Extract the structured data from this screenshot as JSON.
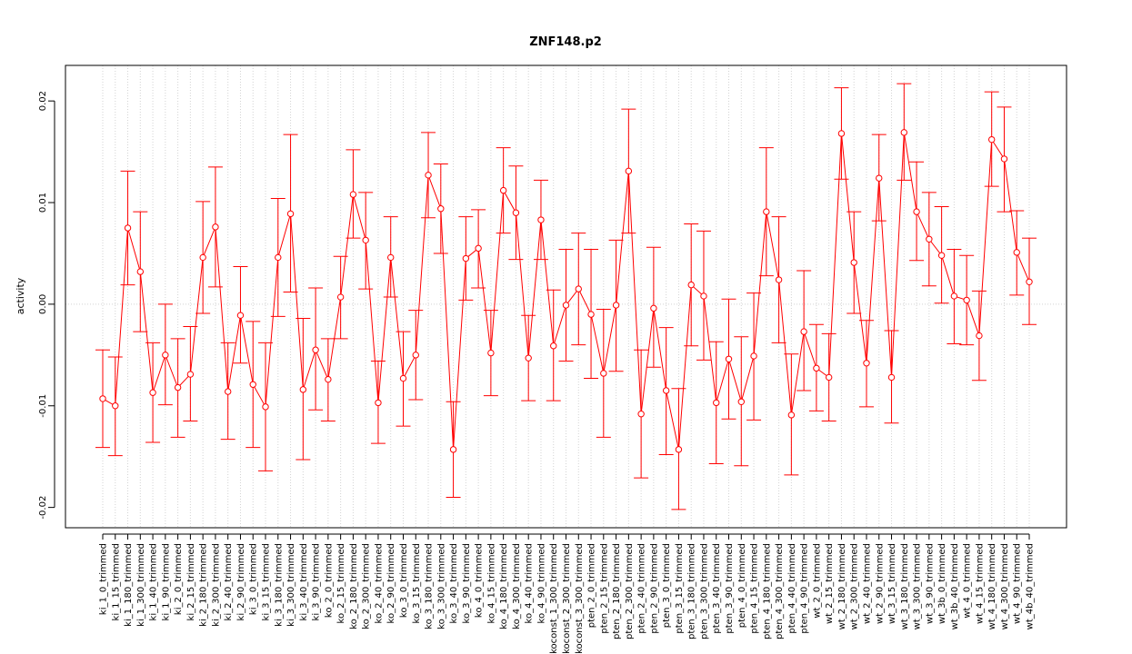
{
  "chart_data": {
    "type": "line",
    "title": "ZNF148.p2",
    "xlabel": "",
    "ylabel": "activity",
    "ylim": [
      -0.022,
      0.0235
    ],
    "y_ticks": [
      -0.02,
      -0.01,
      0.0,
      0.01,
      0.02
    ],
    "y_tick_labels": [
      "-0.02",
      "-0.01",
      "0.00",
      "0.01",
      "0.02"
    ],
    "grid": true,
    "colors": {
      "series": "#ff0000",
      "grid": "#d3d3d3",
      "axis": "#000000"
    },
    "categories": [
      "ki_1_0_trimmed",
      "ki_1_15_trimmed",
      "ki_1_180_trimmed",
      "ki_1_300_trimmed",
      "ki_1_40_trimmed",
      "ki_1_90_trimmed",
      "ki_2_0_trimmed",
      "ki_2_15_trimmed",
      "ki_2_180_trimmed",
      "ki_2_300_trimmed",
      "ki_2_40_trimmed",
      "ki_2_90_trimmed",
      "ki_3_0_trimmed",
      "ki_3_15_trimmed",
      "ki_3_180_trimmed",
      "ki_3_300_trimmed",
      "ki_3_40_trimmed",
      "ki_3_90_trimmed",
      "ko_2_0_trimmed",
      "ko_2_15_trimmed",
      "ko_2_180_trimmed",
      "ko_2_300_trimmed",
      "ko_2_40_trimmed",
      "ko_2_90_trimmed",
      "ko_3_0_trimmed",
      "ko_3_15_trimmed",
      "ko_3_180_trimmed",
      "ko_3_300_trimmed",
      "ko_3_40_trimmed",
      "ko_3_90_trimmed",
      "ko_4_0_trimmed",
      "ko_4_15_trimmed",
      "ko_4_180_trimmed",
      "ko_4_300_trimmed",
      "ko_4_40_trimmed",
      "ko_4_90_trimmed",
      "koconst_1_300_trimmed",
      "koconst_2_300_trimmed",
      "koconst_3_300_trimmed",
      "pten_2_0_trimmed",
      "pten_2_15_trimmed",
      "pten_2_180_trimmed",
      "pten_2_300_trimmed",
      "pten_2_40_trimmed",
      "pten_2_90_trimmed",
      "pten_3_0_trimmed",
      "pten_3_15_trimmed",
      "pten_3_180_trimmed",
      "pten_3_300_trimmed",
      "pten_3_40_trimmed",
      "pten_3_90_trimmed",
      "pten_4_0_trimmed",
      "pten_4_15_trimmed",
      "pten_4_180_trimmed",
      "pten_4_300_trimmed",
      "pten_4_40_trimmed",
      "pten_4_90_trimmed",
      "wt_2_0_trimmed",
      "wt_2_15_trimmed",
      "wt_2_180_trimmed",
      "wt_2_300_trimmed",
      "wt_2_40_trimmed",
      "wt_2_90_trimmed",
      "wt_3_15_trimmed",
      "wt_3_180_trimmed",
      "wt_3_300_trimmed",
      "wt_3_90_trimmed",
      "wt_3b_0_trimmed",
      "wt_3b_40_trimmed",
      "wt_4_0_trimmed",
      "wt_4_15_trimmed",
      "wt_4_180_trimmed",
      "wt_4_300_trimmed",
      "wt_4_90_trimmed",
      "wt_4b_40_trimmed"
    ],
    "series": [
      {
        "values": [
          -0.0093,
          -0.01,
          0.0075,
          0.0032,
          -0.0087,
          -0.005,
          -0.0082,
          -0.0069,
          0.0046,
          0.0076,
          -0.0086,
          -0.0011,
          -0.0079,
          -0.0101,
          0.0046,
          0.0089,
          -0.0084,
          -0.0045,
          -0.0074,
          0.0007,
          0.0108,
          0.0063,
          -0.0097,
          0.0046,
          -0.0073,
          -0.005,
          0.0127,
          0.0094,
          -0.0143,
          0.0045,
          0.0055,
          -0.0048,
          0.0112,
          0.009,
          -0.0053,
          0.0083,
          -0.0041,
          -0.0001,
          0.0015,
          -0.001,
          -0.0068,
          -0.0001,
          0.0131,
          -0.0108,
          -0.0004,
          -0.0085,
          -0.0143,
          0.0019,
          0.0008,
          -0.0097,
          -0.0054,
          -0.0096,
          -0.0051,
          0.0091,
          0.0024,
          -0.0109,
          -0.0027,
          -0.0063,
          -0.0072,
          0.0168,
          0.0041,
          -0.0058,
          0.0124,
          -0.0072,
          0.0169,
          0.0091,
          0.0064,
          0.0048,
          0.0008,
          0.0004,
          -0.0031,
          0.0162,
          0.0143,
          0.0051,
          0.0022
        ],
        "lower": [
          -0.0141,
          -0.0149,
          0.0019,
          -0.0027,
          -0.0136,
          -0.0099,
          -0.0131,
          -0.0115,
          -0.0009,
          0.0017,
          -0.0133,
          -0.0058,
          -0.0141,
          -0.0164,
          -0.0012,
          0.0012,
          -0.0153,
          -0.0104,
          -0.0115,
          -0.0034,
          0.0065,
          0.0015,
          -0.0137,
          0.0007,
          -0.012,
          -0.0094,
          0.0085,
          0.005,
          -0.019,
          0.0004,
          0.0016,
          -0.009,
          0.007,
          0.0044,
          -0.0095,
          0.0044,
          -0.0095,
          -0.0056,
          -0.004,
          -0.0073,
          -0.0131,
          -0.0066,
          0.007,
          -0.0171,
          -0.0062,
          -0.0148,
          -0.0202,
          -0.0041,
          -0.0055,
          -0.0157,
          -0.0113,
          -0.0159,
          -0.0114,
          0.0028,
          -0.0038,
          -0.0168,
          -0.0085,
          -0.0105,
          -0.0115,
          0.0123,
          -0.0009,
          -0.0101,
          0.0082,
          -0.0117,
          0.0122,
          0.0043,
          0.0018,
          0.0001,
          -0.0039,
          -0.004,
          -0.0075,
          0.0116,
          0.0091,
          0.0009,
          -0.002
        ],
        "upper": [
          -0.0045,
          -0.0052,
          0.0131,
          0.0091,
          -0.0038,
          0.0,
          -0.0034,
          -0.0022,
          0.0101,
          0.0135,
          -0.0038,
          0.0037,
          -0.0017,
          -0.0038,
          0.0104,
          0.0167,
          -0.0014,
          0.0016,
          -0.0034,
          0.0047,
          0.0152,
          0.011,
          -0.0056,
          0.0086,
          -0.0027,
          -0.0006,
          0.0169,
          0.0138,
          -0.0096,
          0.0086,
          0.0093,
          -0.0006,
          0.0154,
          0.0136,
          -0.0011,
          0.0122,
          0.0014,
          0.0054,
          0.007,
          0.0054,
          -0.0005,
          0.0063,
          0.0192,
          -0.0045,
          0.0056,
          -0.0023,
          -0.0083,
          0.0079,
          0.0072,
          -0.0037,
          0.0005,
          -0.0032,
          0.0011,
          0.0154,
          0.0086,
          -0.0049,
          0.0033,
          -0.002,
          -0.0029,
          0.0213,
          0.0091,
          -0.0016,
          0.0167,
          -0.0026,
          0.0217,
          0.014,
          0.011,
          0.0096,
          0.0054,
          0.0048,
          0.0013,
          0.0209,
          0.0194,
          0.0092,
          0.0065
        ]
      }
    ]
  }
}
